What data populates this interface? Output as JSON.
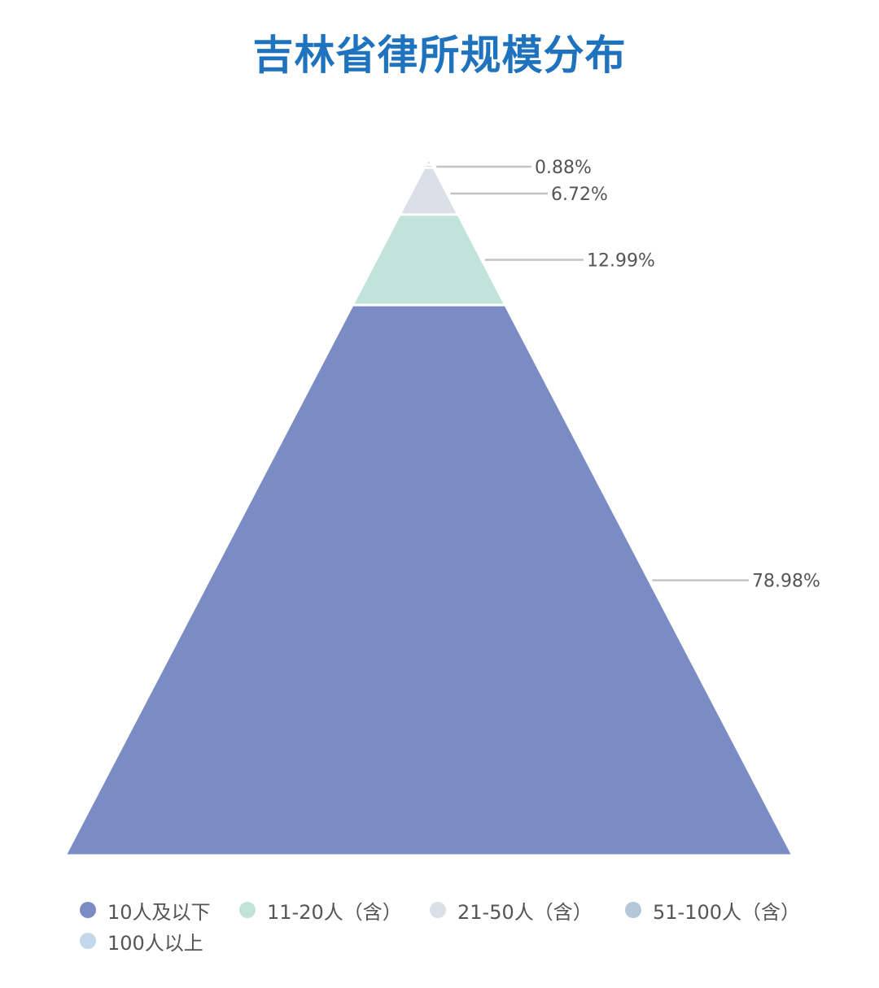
{
  "chart_data": {
    "type": "pyramid",
    "title": "吉林省律所规模分布",
    "series": [
      {
        "label": "10人及以下",
        "value": 78.98,
        "display": "78.98%",
        "color": "#7b8cc4"
      },
      {
        "label": "11-20人（含）",
        "value": 12.99,
        "display": "12.99%",
        "color": "#c2e3dc"
      },
      {
        "label": "21-50人（含）",
        "value": 6.72,
        "display": "6.72%",
        "color": "#dbe0e8"
      },
      {
        "label": "51-100人（含）",
        "value": 0.43,
        "display": "",
        "color": "#b5c6d9"
      },
      {
        "label": "100人以上",
        "value": 0.88,
        "display": "0.88%",
        "color": "#c3d8ea"
      }
    ],
    "legend_position": "bottom"
  }
}
